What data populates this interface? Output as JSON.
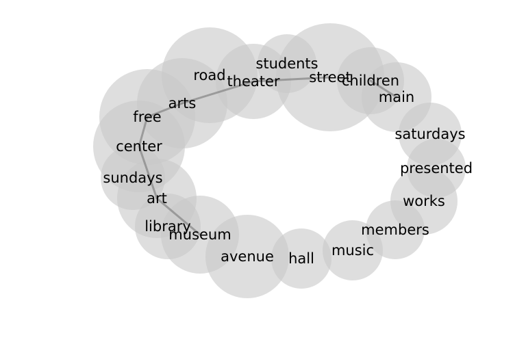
{
  "colors": {
    "bubble": "#c8c8c8",
    "link": "#888888",
    "text": "#000000"
  },
  "nodes": [
    {
      "id": "road",
      "label": "road"
    },
    {
      "id": "students",
      "label": "students"
    },
    {
      "id": "street",
      "label": "street"
    },
    {
      "id": "theater",
      "label": "theater"
    },
    {
      "id": "children",
      "label": "children"
    },
    {
      "id": "main",
      "label": "main"
    },
    {
      "id": "arts",
      "label": "arts"
    },
    {
      "id": "free",
      "label": "free"
    },
    {
      "id": "saturdays",
      "label": "saturdays"
    },
    {
      "id": "center",
      "label": "center"
    },
    {
      "id": "presented",
      "label": "presented"
    },
    {
      "id": "sundays",
      "label": "sundays"
    },
    {
      "id": "works",
      "label": "works"
    },
    {
      "id": "art",
      "label": "art"
    },
    {
      "id": "members",
      "label": "members"
    },
    {
      "id": "library",
      "label": "library"
    },
    {
      "id": "museum",
      "label": "museum"
    },
    {
      "id": "music",
      "label": "music"
    },
    {
      "id": "avenue",
      "label": "avenue"
    },
    {
      "id": "hall",
      "label": "hall"
    }
  ],
  "edges": [
    [
      "street",
      "theater"
    ],
    [
      "theater",
      "arts"
    ],
    [
      "arts",
      "free"
    ],
    [
      "free",
      "center"
    ],
    [
      "center",
      "art"
    ],
    [
      "art",
      "museum"
    ],
    [
      "children",
      "main"
    ]
  ]
}
